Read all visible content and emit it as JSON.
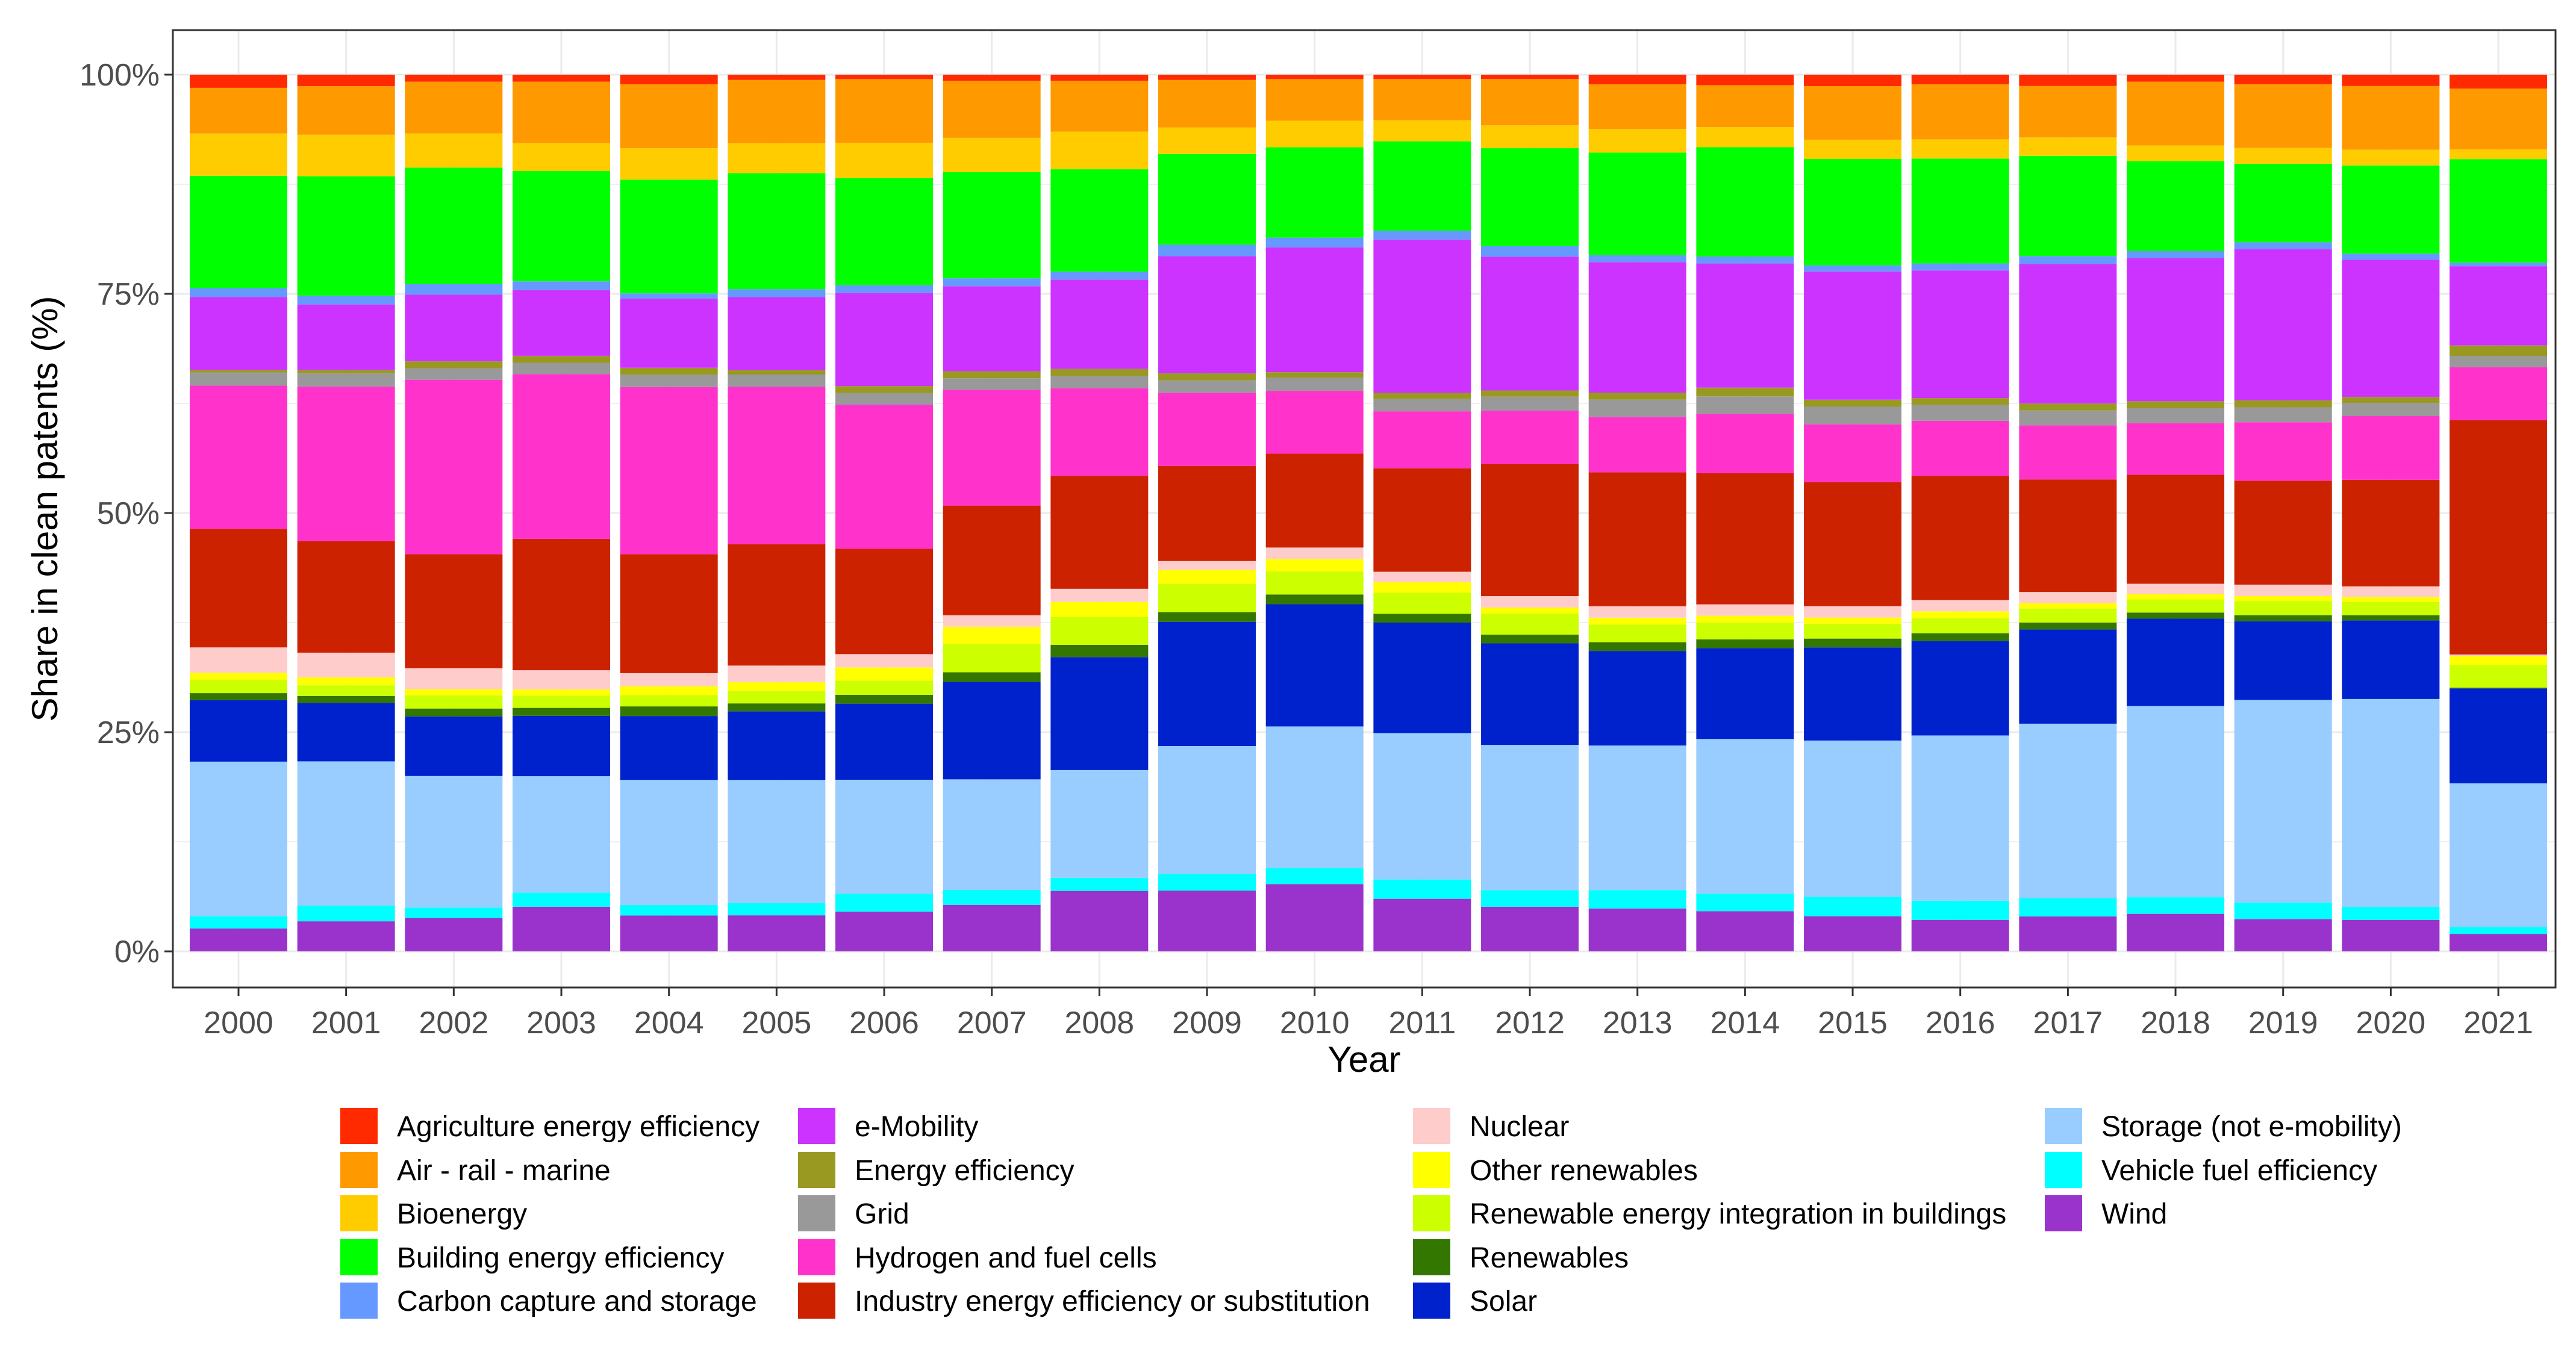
{
  "chart_data": {
    "type": "bar",
    "stacked": true,
    "normalized": true,
    "title": "",
    "xlabel": "Year",
    "ylabel": "Share in clean patents (%)",
    "ylim": [
      0,
      100
    ],
    "y_ticks": [
      "0%",
      "25%",
      "50%",
      "75%",
      "100%"
    ],
    "grid": true,
    "legend_position": "bottom",
    "categories": [
      "2000",
      "2001",
      "2002",
      "2003",
      "2004",
      "2005",
      "2006",
      "2007",
      "2008",
      "2009",
      "2010",
      "2011",
      "2012",
      "2013",
      "2014",
      "2015",
      "2016",
      "2017",
      "2018",
      "2019",
      "2020",
      "2021"
    ],
    "legend": [
      {
        "name": "Agriculture energy efficiency",
        "color": "#ff2a00"
      },
      {
        "name": "Air - rail - marine",
        "color": "#ff9900"
      },
      {
        "name": "Bioenergy",
        "color": "#ffcc00"
      },
      {
        "name": "Building energy efficiency",
        "color": "#00ff00"
      },
      {
        "name": "Carbon capture and storage",
        "color": "#6699ff"
      },
      {
        "name": "e-Mobility",
        "color": "#cc33ff"
      },
      {
        "name": "Energy efficiency",
        "color": "#999922"
      },
      {
        "name": "Grid",
        "color": "#999999"
      },
      {
        "name": "Hydrogen and fuel cells",
        "color": "#ff33cc"
      },
      {
        "name": "Industry energy efficiency or substitution",
        "color": "#cc2200"
      },
      {
        "name": "Nuclear",
        "color": "#ffcccc"
      },
      {
        "name": "Other renewables",
        "color": "#ffff00"
      },
      {
        "name": "Renewable energy integration in buildings",
        "color": "#ccff00"
      },
      {
        "name": "Renewables",
        "color": "#337700"
      },
      {
        "name": "Solar",
        "color": "#0022cc"
      },
      {
        "name": "Storage (not e-mobility)",
        "color": "#99ccff"
      },
      {
        "name": "Vehicle fuel efficiency",
        "color": "#00ffff"
      },
      {
        "name": "Wind",
        "color": "#9933cc"
      }
    ],
    "series": [
      {
        "name": "Wind",
        "color": "#9933cc",
        "values": [
          2.6,
          3.4,
          3.8,
          5.1,
          4.1,
          4.1,
          4.5,
          5.3,
          6.9,
          6.9,
          7.6,
          6.0,
          5.1,
          4.9,
          4.6,
          4.0,
          3.6,
          4.0,
          4.3,
          3.7,
          3.6,
          2.0
        ]
      },
      {
        "name": "Vehicle fuel efficiency",
        "color": "#00ffff",
        "values": [
          1.4,
          1.8,
          1.2,
          1.6,
          1.2,
          1.4,
          2.0,
          1.7,
          1.5,
          1.9,
          1.8,
          2.2,
          1.9,
          2.1,
          2.0,
          2.2,
          2.2,
          2.1,
          1.9,
          1.9,
          1.5,
          0.8
        ]
      },
      {
        "name": "Storage (not e-mobility)",
        "color": "#99ccff",
        "values": [
          17.6,
          16.3,
          15.0,
          13.3,
          14.3,
          14.0,
          12.9,
          12.6,
          12.3,
          14.5,
          16.0,
          16.7,
          16.6,
          16.5,
          17.7,
          17.8,
          18.9,
          20.0,
          21.9,
          23.2,
          23.8,
          16.5
        ]
      },
      {
        "name": "Solar",
        "color": "#0022cc",
        "values": [
          7.0,
          6.6,
          6.8,
          6.9,
          7.3,
          7.8,
          8.6,
          11.1,
          12.9,
          14.1,
          13.8,
          12.6,
          11.6,
          10.8,
          10.4,
          10.6,
          10.8,
          10.8,
          10.0,
          9.0,
          9.0,
          10.9
        ]
      },
      {
        "name": "Renewables",
        "color": "#337700",
        "values": [
          0.8,
          0.8,
          0.9,
          0.9,
          1.1,
          0.9,
          1.0,
          1.1,
          1.4,
          1.1,
          1.1,
          1.0,
          1.0,
          1.0,
          1.0,
          1.0,
          0.9,
          0.8,
          0.7,
          0.7,
          0.6,
          0.1
        ]
      },
      {
        "name": "Renewable energy integration in buildings",
        "color": "#ccff00",
        "values": [
          1.5,
          1.2,
          1.5,
          1.4,
          1.3,
          1.4,
          1.6,
          3.2,
          3.2,
          3.2,
          2.6,
          2.4,
          2.4,
          2.0,
          1.9,
          1.7,
          1.7,
          1.6,
          1.5,
          1.6,
          1.5,
          2.6
        ]
      },
      {
        "name": "Other renewables",
        "color": "#ffff00",
        "values": [
          0.8,
          0.9,
          0.7,
          0.7,
          1.0,
          1.0,
          1.5,
          2.0,
          1.7,
          1.6,
          1.4,
          1.2,
          0.7,
          0.8,
          0.8,
          0.7,
          0.8,
          0.6,
          0.6,
          0.6,
          0.6,
          1.0
        ]
      },
      {
        "name": "Nuclear",
        "color": "#ffcccc",
        "values": [
          2.9,
          2.8,
          2.4,
          2.2,
          1.5,
          1.9,
          1.5,
          1.3,
          1.5,
          1.0,
          1.3,
          1.2,
          1.3,
          1.3,
          1.3,
          1.3,
          1.3,
          1.3,
          1.2,
          1.3,
          1.2,
          0.2
        ]
      },
      {
        "name": "Industry energy efficiency or substitution",
        "color": "#cc2200",
        "values": [
          13.5,
          12.6,
          13.0,
          15.0,
          13.6,
          13.8,
          11.9,
          12.5,
          12.9,
          10.8,
          10.6,
          11.8,
          15.1,
          15.3,
          15.0,
          14.1,
          14.2,
          12.9,
          12.5,
          11.9,
          12.2,
          26.9
        ]
      },
      {
        "name": "Hydrogen and fuel cells",
        "color": "#ff33cc",
        "values": [
          16.3,
          17.5,
          19.9,
          18.8,
          19.1,
          17.9,
          16.3,
          13.2,
          10.0,
          8.3,
          7.1,
          6.5,
          6.1,
          6.3,
          6.8,
          6.6,
          6.3,
          6.2,
          5.9,
          6.7,
          7.3,
          6.1
        ]
      },
      {
        "name": "Grid",
        "color": "#999999",
        "values": [
          1.5,
          1.5,
          1.3,
          1.3,
          1.4,
          1.4,
          1.3,
          1.3,
          1.4,
          1.4,
          1.5,
          1.4,
          1.6,
          2.0,
          2.0,
          2.0,
          1.8,
          1.7,
          1.7,
          1.7,
          1.5,
          1.3
        ]
      },
      {
        "name": "Energy efficiency",
        "color": "#999922",
        "values": [
          0.3,
          0.4,
          0.8,
          0.8,
          0.8,
          0.5,
          0.8,
          0.8,
          0.8,
          0.8,
          0.6,
          0.7,
          0.7,
          0.8,
          1.0,
          0.8,
          0.8,
          0.8,
          0.8,
          0.8,
          0.7,
          1.2
        ]
      },
      {
        "name": "e-Mobility",
        "color": "#cc33ff",
        "values": [
          8.3,
          7.4,
          7.6,
          7.5,
          7.9,
          8.3,
          10.5,
          9.7,
          10.2,
          13.3,
          14.1,
          17.5,
          15.3,
          14.9,
          14.2,
          14.6,
          14.6,
          16.0,
          16.4,
          17.3,
          15.7,
          9.1
        ]
      },
      {
        "name": "Carbon capture and storage",
        "color": "#6699ff",
        "values": [
          1.0,
          1.0,
          1.2,
          1.0,
          0.6,
          0.9,
          0.9,
          0.9,
          0.9,
          1.3,
          1.1,
          1.0,
          1.2,
          0.8,
          0.8,
          0.7,
          0.8,
          0.9,
          0.8,
          0.8,
          0.7,
          0.4
        ]
      },
      {
        "name": "Building energy efficiency",
        "color": "#00ff00",
        "values": [
          12.8,
          13.5,
          13.3,
          12.6,
          13.0,
          13.2,
          12.1,
          12.1,
          11.7,
          10.3,
          10.2,
          10.2,
          11.2,
          11.7,
          12.5,
          12.1,
          12.0,
          11.5,
          10.3,
          9.0,
          10.1,
          11.9
        ]
      },
      {
        "name": "Bioenergy",
        "color": "#ffcc00",
        "values": [
          4.8,
          4.7,
          3.9,
          3.2,
          3.6,
          3.4,
          4.0,
          3.9,
          4.3,
          3.0,
          3.0,
          2.4,
          2.6,
          2.7,
          2.3,
          2.2,
          2.2,
          2.1,
          1.8,
          1.8,
          1.8,
          1.1
        ]
      },
      {
        "name": "Air - rail - marine",
        "color": "#ff9900",
        "values": [
          5.2,
          5.5,
          5.9,
          7.0,
          7.3,
          7.2,
          7.2,
          6.5,
          5.8,
          5.4,
          4.7,
          4.7,
          5.3,
          5.1,
          4.8,
          6.1,
          6.3,
          5.9,
          7.3,
          7.3,
          7.3,
          7.0
        ]
      },
      {
        "name": "Agriculture energy efficiency",
        "color": "#ff2a00",
        "values": [
          1.5,
          1.3,
          0.8,
          0.8,
          1.1,
          0.6,
          0.5,
          0.7,
          0.7,
          0.6,
          0.5,
          0.5,
          0.5,
          1.1,
          1.2,
          1.3,
          1.1,
          1.3,
          0.8,
          1.1,
          1.3,
          1.6
        ]
      }
    ]
  }
}
